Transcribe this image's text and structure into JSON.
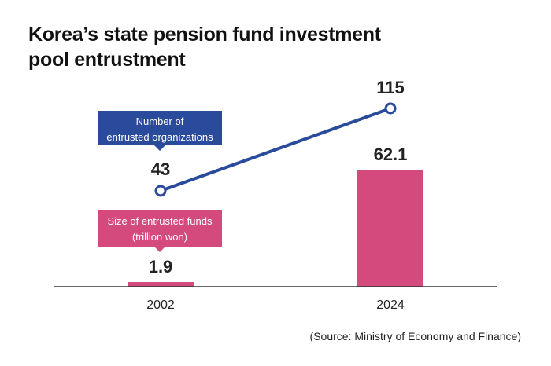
{
  "title_line1": "Korea’s state pension fund investment",
  "title_line2": "pool entrustment",
  "source": "(Source: Ministry of Economy and Finance)",
  "callouts": {
    "line": [
      "Number of",
      "entrusted organizations"
    ],
    "bar": [
      "Size of entrusted funds",
      "(trillion won)"
    ]
  },
  "colors": {
    "line": "#2a4a9c",
    "bar": "#d44a7d",
    "axis": "#333333"
  },
  "chart_data": {
    "type": "bar+line",
    "categories": [
      "2002",
      "2024"
    ],
    "series": [
      {
        "name": "Size of entrusted funds (trillion won)",
        "type": "bar",
        "values": [
          1.9,
          62.1
        ],
        "labels": [
          "1.9",
          "62.1"
        ]
      },
      {
        "name": "Number of entrusted organizations",
        "type": "line",
        "values": [
          43,
          115
        ],
        "labels": [
          "43",
          "115"
        ]
      }
    ]
  }
}
